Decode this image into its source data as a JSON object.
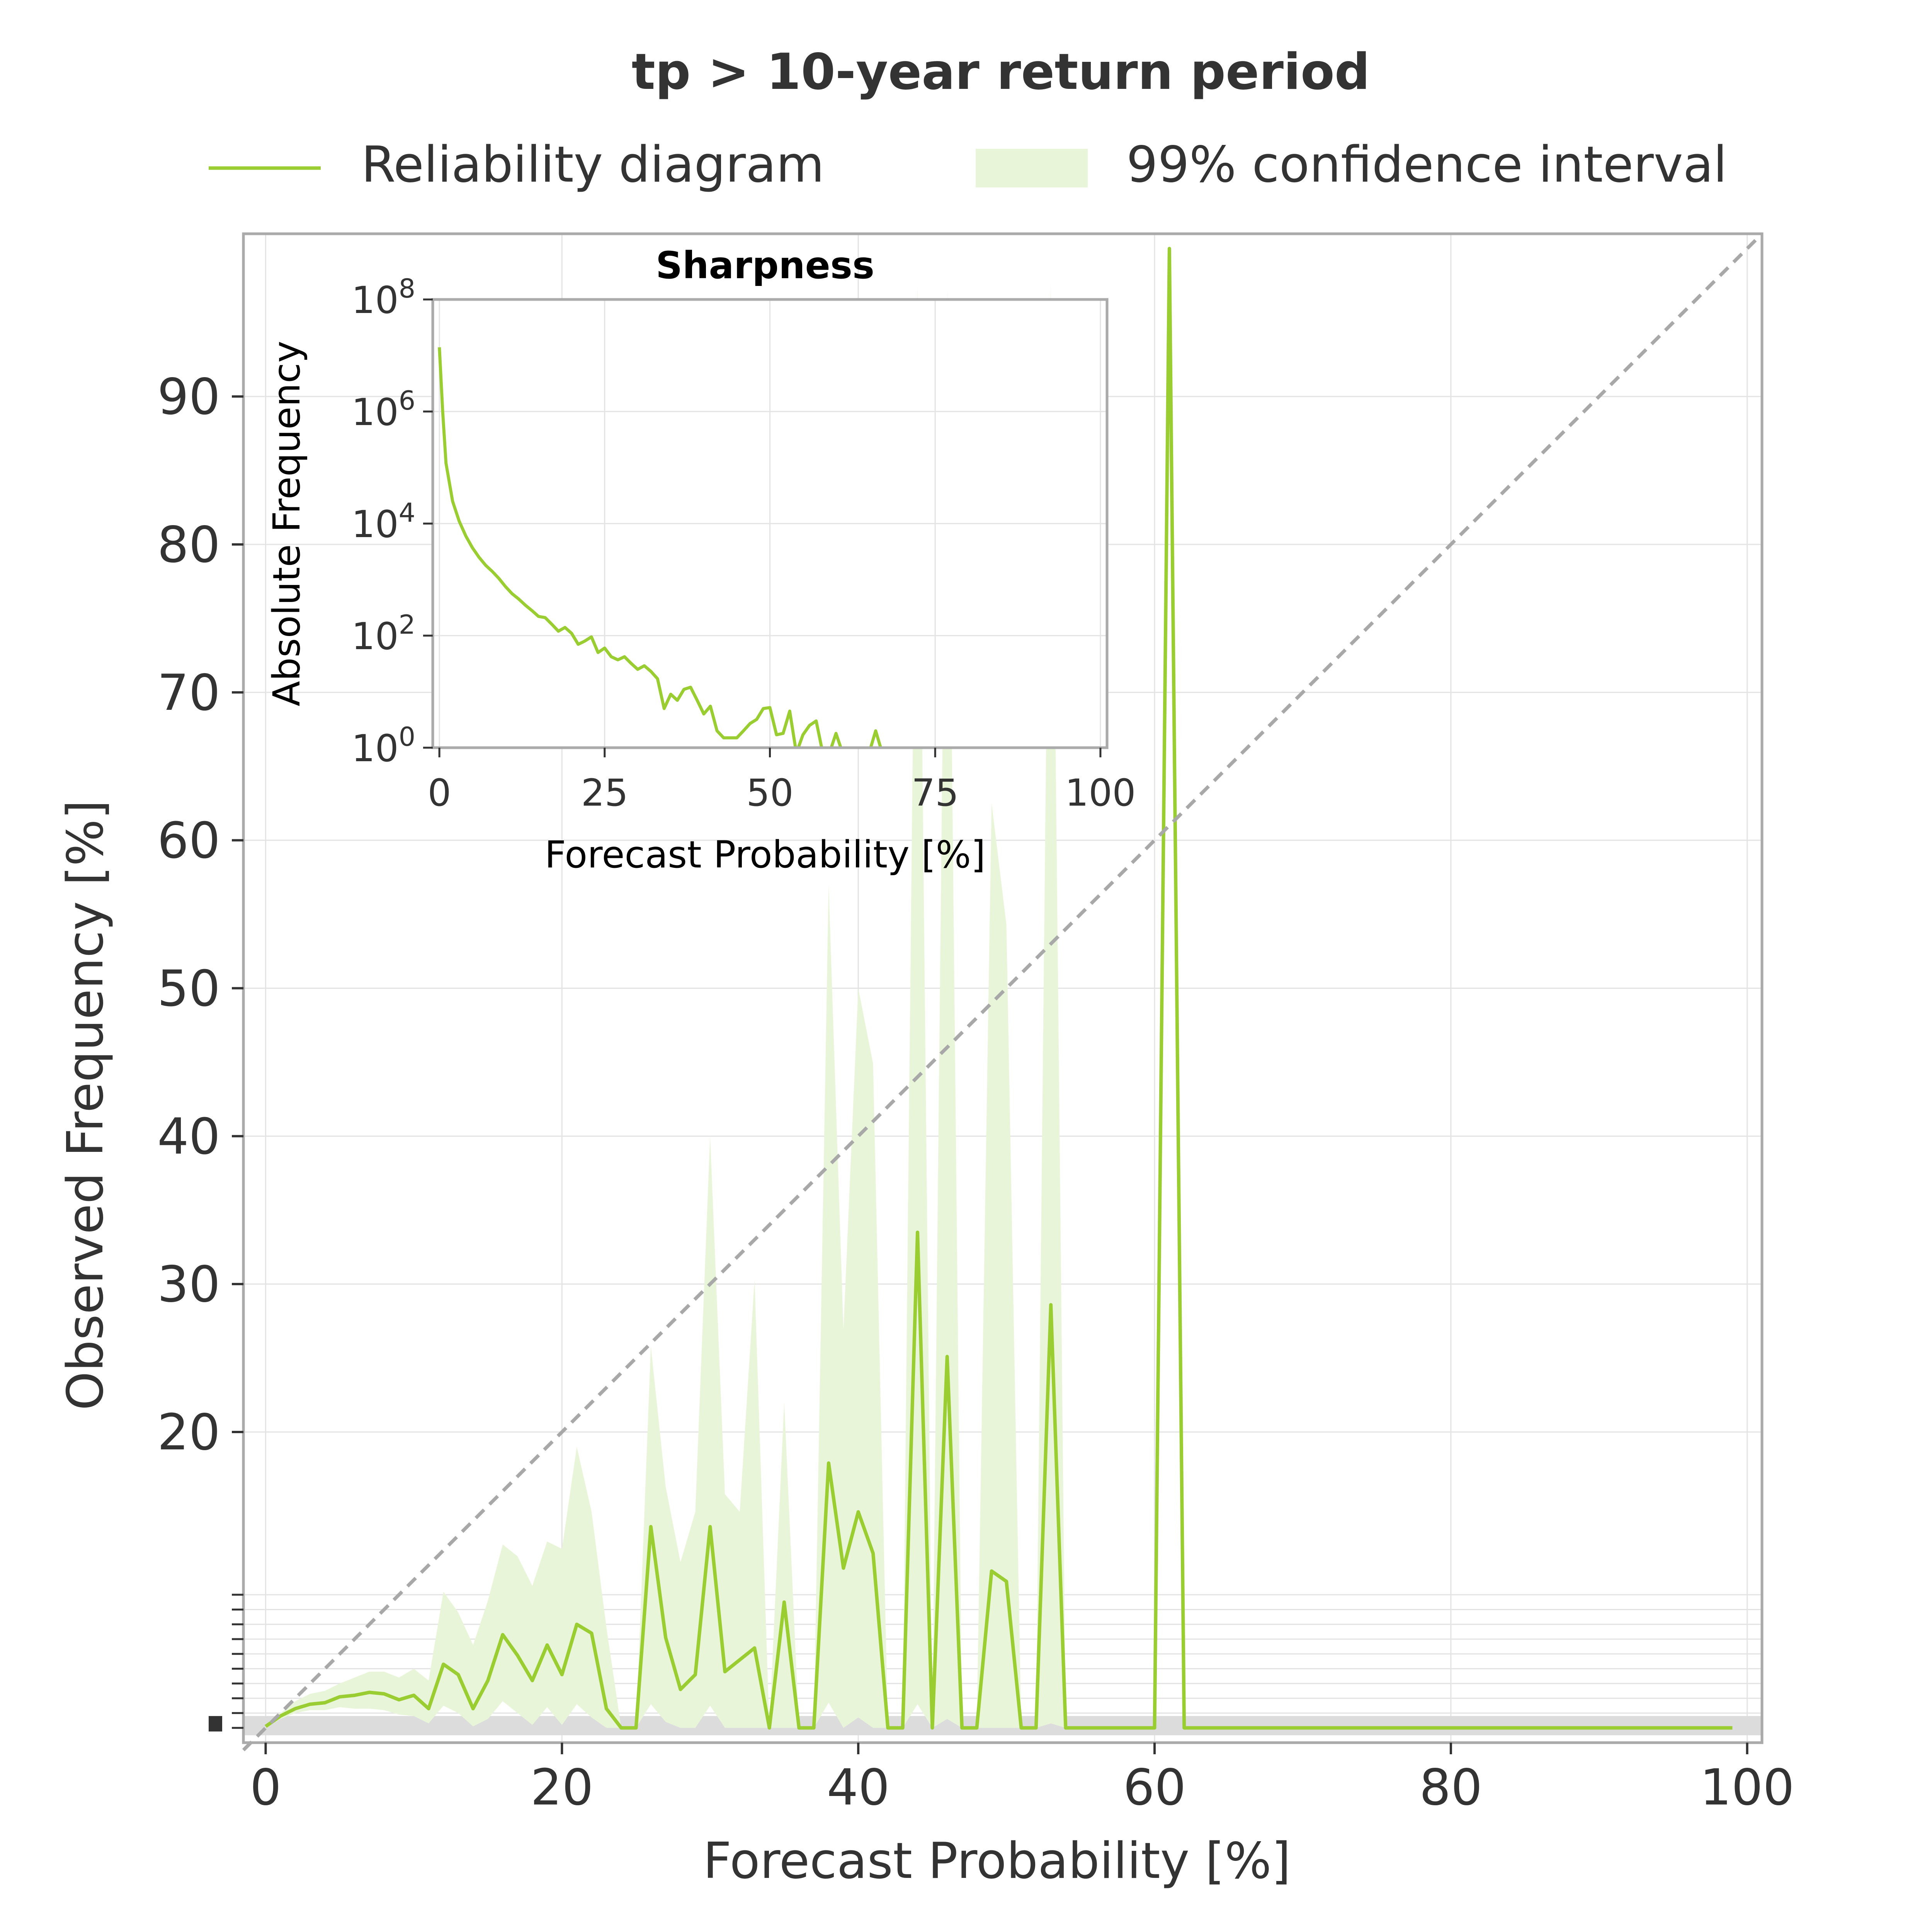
{
  "chart_data": [
    {
      "type": "line",
      "title": "tp > 10-year return period",
      "xlabel": "Forecast Probability [%]",
      "ylabel": "Observed Frequency [%]",
      "xlim": [
        -1.5,
        101
      ],
      "ylim": [
        -1,
        101
      ],
      "grid": true,
      "legend": {
        "placement": "top",
        "entries": [
          "Reliability diagram",
          "99% confidence interval"
        ]
      },
      "xticks": [
        0,
        20,
        40,
        60,
        80,
        100
      ],
      "yticks": [
        20,
        30,
        40,
        50,
        60,
        70,
        80,
        90
      ],
      "xticklabels": [
        "0",
        "20",
        "40",
        "60",
        "80",
        "100"
      ],
      "yticklabels": [
        "20",
        "30",
        "40",
        "50",
        "60",
        "70",
        "80",
        "90"
      ],
      "reference_line": "diagonal, dashed, y = x",
      "colors": {
        "line": "#9acd32",
        "band": "#e8f5d8",
        "diagonal": "#a8a8a8",
        "axes": "#aaaaaa"
      },
      "series": [
        {
          "name": "Reliability diagram",
          "x": [
            0,
            1,
            2,
            3,
            4,
            5,
            6,
            7,
            8,
            9,
            10,
            11,
            12,
            13,
            14,
            15,
            16,
            17,
            18,
            19,
            20,
            21,
            22,
            23,
            24,
            25,
            26,
            27,
            28,
            29,
            30,
            31,
            32,
            33,
            34,
            35,
            36,
            37,
            38,
            39,
            40,
            41,
            42,
            43,
            44,
            45,
            46,
            47,
            48,
            49,
            50,
            51,
            52,
            53,
            54,
            55,
            56,
            57,
            58,
            59,
            60,
            61,
            62,
            63,
            64,
            65,
            66,
            67,
            68,
            69,
            70,
            71,
            72,
            73,
            74,
            75,
            76,
            77,
            78,
            79,
            80,
            81,
            82,
            83,
            84,
            85,
            86,
            87,
            88,
            89,
            90,
            91,
            92,
            93,
            94,
            95,
            96,
            97,
            98,
            99
          ],
          "values": [
            0.1,
            0.8,
            1.3,
            1.6,
            1.7,
            2.1,
            2.2,
            2.4,
            2.3,
            1.9,
            2.2,
            1.3,
            4.3,
            3.6,
            1.3,
            3.2,
            6.3,
            4.9,
            3.2,
            5.6,
            3.6,
            7.0,
            6.4,
            1.3,
            0,
            0,
            13.6,
            6.1,
            2.6,
            3.6,
            13.6,
            3.8,
            4.6,
            5.4,
            0,
            8.5,
            0,
            0,
            17.9,
            10.8,
            14.6,
            11.8,
            0,
            0,
            33.5,
            0,
            25.1,
            0,
            0,
            10.6,
            9.9,
            0,
            0,
            28.6,
            0,
            0,
            0,
            0,
            0,
            0,
            0,
            100,
            0,
            0,
            0,
            0,
            0,
            0,
            0,
            0,
            0,
            0,
            0,
            0,
            0,
            0,
            0,
            0,
            0,
            0,
            0,
            0,
            0,
            0,
            0,
            0,
            0,
            0,
            0,
            0,
            0,
            0,
            0,
            0,
            0,
            0,
            0,
            0,
            0,
            0
          ]
        },
        {
          "name": "99% confidence interval",
          "x": [
            0,
            1,
            2,
            3,
            4,
            5,
            6,
            7,
            8,
            9,
            10,
            11,
            12,
            13,
            14,
            15,
            16,
            17,
            18,
            19,
            20,
            21,
            22,
            23,
            24,
            25,
            26,
            27,
            28,
            29,
            30,
            31,
            32,
            33,
            34,
            35,
            36,
            37,
            38,
            39,
            40,
            41,
            42,
            43,
            44,
            45,
            46,
            47,
            48,
            49,
            50,
            51,
            52,
            53,
            54
          ],
          "lower": [
            0,
            0.6,
            1.0,
            1.2,
            1.2,
            1.4,
            1.3,
            1.3,
            1.2,
            0.9,
            0.8,
            0.3,
            1.5,
            1.0,
            0.1,
            0.6,
            1.8,
            1.0,
            0.2,
            1.4,
            0.2,
            1.6,
            0.7,
            0,
            0,
            0,
            1.6,
            0.4,
            0,
            0,
            1.5,
            0,
            0,
            0,
            0,
            0,
            0,
            0,
            1.7,
            0,
            0.7,
            0,
            0,
            0,
            1.6,
            0,
            0.6,
            0,
            0,
            0,
            0,
            0,
            0,
            0.3,
            0
          ],
          "upper": [
            0.2,
            1.0,
            1.8,
            2.3,
            2.5,
            3.0,
            3.4,
            3.8,
            3.8,
            3.4,
            4.0,
            3.2,
            9.2,
            7.8,
            5.6,
            8.6,
            12.4,
            11.6,
            9.6,
            12.6,
            12.1,
            19.0,
            14.6,
            6.8,
            0,
            0,
            25.8,
            16.3,
            11.2,
            14.6,
            40.0,
            15.8,
            14.6,
            30.3,
            0,
            22.0,
            0,
            0,
            57.0,
            26.9,
            50.0,
            44.9,
            0,
            0,
            97.6,
            0,
            97.3,
            0,
            0,
            62.5,
            54.3,
            0,
            0,
            97.6,
            0
          ]
        }
      ],
      "bottom_axis_overlap_labels": "illegible overlapping tick labels near y = 0"
    },
    {
      "type": "line",
      "title": "Sharpness",
      "xlabel": "Forecast Probability [%]",
      "ylabel": "Absolute Frequency",
      "yscale": "log",
      "xlim": [
        -1,
        101
      ],
      "ylim": [
        1,
        100000000
      ],
      "grid": true,
      "xticks": [
        0,
        25,
        50,
        75,
        100
      ],
      "xticklabels": [
        "0",
        "25",
        "50",
        "75",
        "100"
      ],
      "yticks": [
        1,
        100,
        10000,
        1000000,
        100000000
      ],
      "yticklabels": [
        {
          "base": "10",
          "exp": "0"
        },
        {
          "base": "10",
          "exp": "2"
        },
        {
          "base": "10",
          "exp": "4"
        },
        {
          "base": "10",
          "exp": "6"
        },
        {
          "base": "10",
          "exp": "8"
        }
      ],
      "series": [
        {
          "name": "",
          "x": [
            0,
            0.5,
            1,
            2,
            3,
            4,
            5,
            6,
            7,
            8,
            9,
            10,
            11,
            12,
            13,
            14,
            15,
            16,
            17,
            18,
            19,
            20,
            21,
            22,
            23,
            24,
            25,
            26,
            27,
            28,
            29,
            30,
            31,
            32,
            33,
            34,
            35,
            36,
            37,
            38,
            39,
            40,
            41,
            42,
            43,
            44,
            45,
            46,
            47,
            48,
            49,
            50,
            51,
            52,
            53,
            54,
            55,
            56,
            57,
            58,
            59,
            60,
            61,
            62,
            63,
            64,
            65,
            66,
            67
          ],
          "values": [
            14000000,
            1000000,
            120000,
            25000,
            11000,
            6000,
            3700,
            2500,
            1800,
            1400,
            1050,
            750,
            560,
            450,
            350,
            280,
            220,
            210,
            160,
            120,
            140,
            110,
            70,
            80,
            95,
            50,
            60,
            42,
            37,
            42,
            32,
            25,
            29,
            23,
            17,
            5,
            9,
            7,
            11,
            12,
            7,
            4,
            5.5,
            2,
            1.5,
            1.5,
            1.5,
            2,
            2.7,
            3.2,
            5,
            5.2,
            1.7,
            1.8,
            4.5,
            0.8,
            1.7,
            2.5,
            3,
            0.8,
            0.8,
            1.8,
            0.8,
            0.8,
            0.8,
            0.8,
            0.8,
            2,
            0.8
          ]
        }
      ]
    }
  ]
}
